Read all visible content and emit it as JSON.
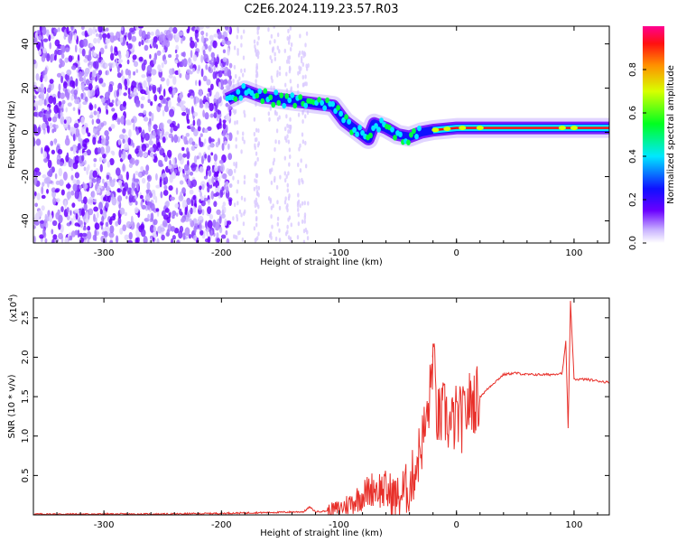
{
  "figure_title": "C2E6.2024.119.23.57.R03",
  "chart_data": [
    {
      "type": "heatmap",
      "xlabel": "Height of straight line (km)",
      "ylabel": "Frequency (Hz)",
      "xlim": [
        -360,
        130
      ],
      "ylim": [
        -50,
        48
      ],
      "xticks": [
        -300,
        -200,
        -100,
        0,
        100
      ],
      "yticks": [
        -40,
        -20,
        0,
        20,
        40
      ],
      "colorbar": {
        "label": "Normalized spectral amplitude",
        "range": [
          0.0,
          1.0
        ],
        "ticks": [
          "0.0",
          "0.2",
          "0.4",
          "0.6",
          "0.8"
        ],
        "tick_values": [
          0,
          0.2,
          0.4,
          0.6,
          0.8
        ]
      },
      "ridge": [
        {
          "x": -195,
          "y": 15
        },
        {
          "x": -180,
          "y": 19
        },
        {
          "x": -165,
          "y": 16
        },
        {
          "x": -150,
          "y": 15
        },
        {
          "x": -135,
          "y": 14
        },
        {
          "x": -120,
          "y": 13
        },
        {
          "x": -105,
          "y": 12
        },
        {
          "x": -95,
          "y": 5
        },
        {
          "x": -85,
          "y": 1
        },
        {
          "x": -75,
          "y": -3
        },
        {
          "x": -70,
          "y": 4
        },
        {
          "x": -60,
          "y": 2
        },
        {
          "x": -50,
          "y": -1
        },
        {
          "x": -40,
          "y": -2
        },
        {
          "x": -30,
          "y": 0
        },
        {
          "x": -20,
          "y": 1
        },
        {
          "x": 0,
          "y": 2
        },
        {
          "x": 50,
          "y": 2
        },
        {
          "x": 90,
          "y": 2
        },
        {
          "x": 130,
          "y": 2
        }
      ]
    },
    {
      "type": "line",
      "xlabel": "Height of straight line (km)",
      "ylabel": "SNR (10 * v/v)",
      "y_multiplier": "(x10",
      "y_multiplier_exp": "4",
      "y_multiplier_close": ")",
      "xlim": [
        -360,
        130
      ],
      "ylim": [
        0,
        2.75
      ],
      "xticks": [
        -300,
        -200,
        -100,
        0,
        100
      ],
      "yticks": [
        0.5,
        1.0,
        1.5,
        2.0,
        2.5
      ],
      "ytick_labels": [
        "0.5",
        "1.0",
        "1.5",
        "2.0",
        "2.5"
      ],
      "line_color": "#e8302a",
      "series": [
        {
          "x": [
            -360,
            -300,
            -250,
            -200,
            -160,
            -130,
            -125,
            -120,
            -110,
            -100,
            -90,
            -80,
            -70,
            -60,
            -50,
            -45,
            -40,
            -35,
            -30,
            -25,
            -22,
            -20,
            -17,
            -15,
            -10,
            -5,
            0,
            5,
            10,
            15,
            20,
            30,
            40,
            50,
            60,
            70,
            80,
            90,
            93,
            95,
            97,
            100,
            110,
            120,
            130
          ],
          "y": [
            0.01,
            0.01,
            0.01,
            0.02,
            0.03,
            0.04,
            0.1,
            0.04,
            0.05,
            0.08,
            0.15,
            0.25,
            0.35,
            0.3,
            0.2,
            0.3,
            0.35,
            0.6,
            0.9,
            1.2,
            1.6,
            2.1,
            1.3,
            1.2,
            1.3,
            1.1,
            1.25,
            1.2,
            1.4,
            1.45,
            1.5,
            1.65,
            1.78,
            1.8,
            1.78,
            1.78,
            1.78,
            1.8,
            2.2,
            1.1,
            2.7,
            1.72,
            1.72,
            1.7,
            1.68
          ]
        }
      ]
    }
  ]
}
